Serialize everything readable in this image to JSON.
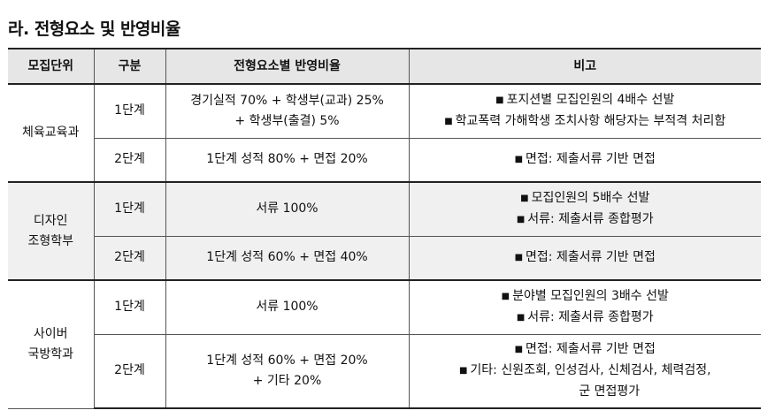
{
  "title": "라. 전형요소 및 반영비율",
  "table": {
    "headers": [
      "모집단위",
      "구분",
      "전형요소별 반영비율",
      "비고"
    ],
    "groups": [
      {
        "unit_lines": [
          "체육교육과"
        ],
        "shaded": false,
        "stages": [
          {
            "stage": "1단계",
            "ratio_lines": [
              "경기실적 70% + 학생부(교과) 25%",
              "+ 학생부(출결) 5%"
            ],
            "notes": [
              "포지션별 모집인원의 4배수 선발",
              "학교폭력 가해학생 조치사항 해당자는 부적격 처리함"
            ],
            "note_cont": ""
          },
          {
            "stage": "2단계",
            "ratio_lines": [
              "1단계 성적 80% + 면접 20%"
            ],
            "notes": [
              "면접: 제출서류 기반 면접"
            ],
            "note_cont": ""
          }
        ]
      },
      {
        "unit_lines": [
          "디자인",
          "조형학부"
        ],
        "shaded": true,
        "stages": [
          {
            "stage": "1단계",
            "ratio_lines": [
              "서류 100%"
            ],
            "notes": [
              "모집인원의 5배수 선발",
              "서류: 제출서류 종합평가"
            ],
            "note_cont": ""
          },
          {
            "stage": "2단계",
            "ratio_lines": [
              "1단계 성적 60% + 면접 40%"
            ],
            "notes": [
              "면접: 제출서류 기반 면접"
            ],
            "note_cont": ""
          }
        ]
      },
      {
        "unit_lines": [
          "사이버",
          "국방학과"
        ],
        "shaded": false,
        "stages": [
          {
            "stage": "1단계",
            "ratio_lines": [
              "서류 100%"
            ],
            "notes": [
              "분야별 모집인원의 3배수 선발",
              "서류: 제출서류 종합평가"
            ],
            "note_cont": ""
          },
          {
            "stage": "2단계",
            "ratio_lines": [
              "1단계 성적 60% + 면접 20%",
              "+ 기타 20%"
            ],
            "notes": [
              "면접: 제출서류 기반 면접",
              "기타: 신원조회, 인성검사, 신체검사, 체력검정,"
            ],
            "note_cont": "군 면접평가"
          }
        ]
      }
    ]
  },
  "icons": {
    "bullet": "black-square-bullet"
  }
}
